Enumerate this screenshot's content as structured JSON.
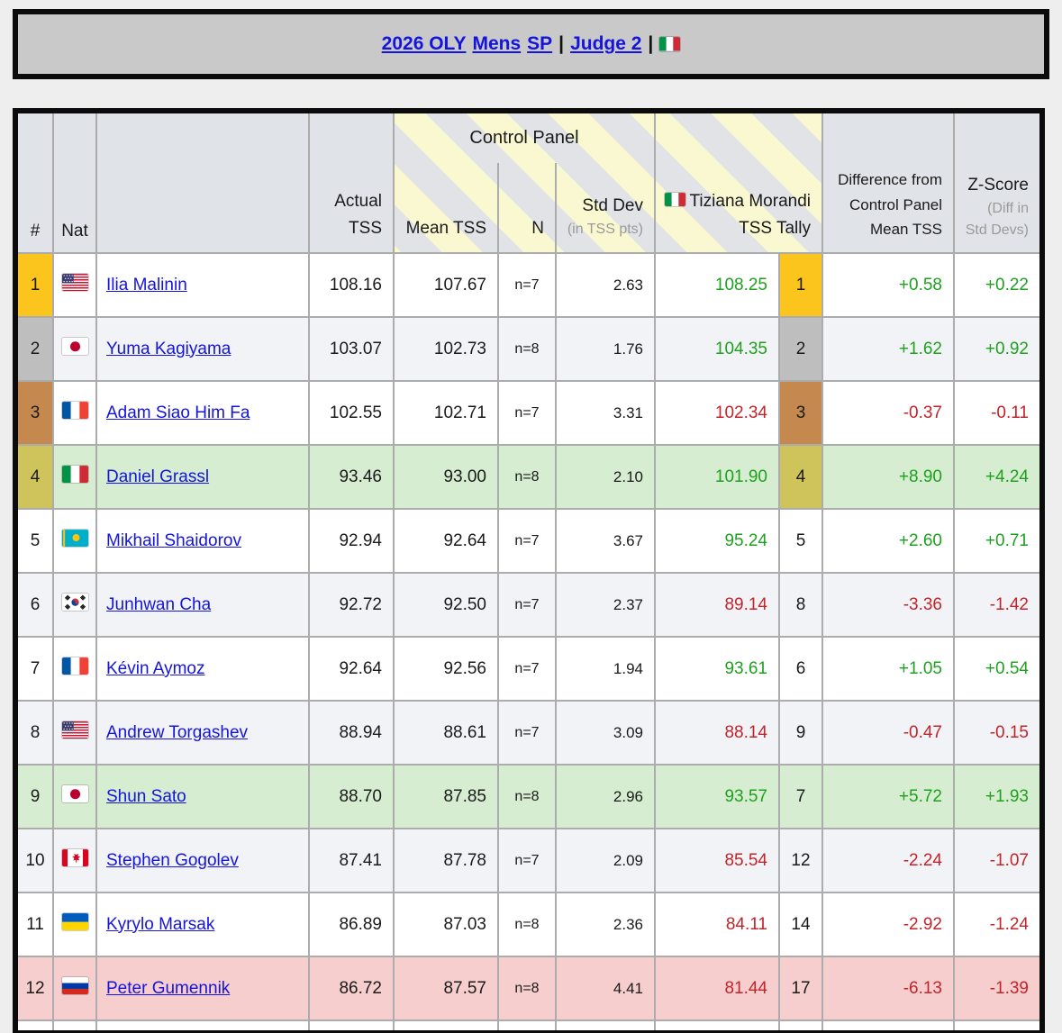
{
  "banner": {
    "links": [
      "2026 OLY",
      "Mens",
      "SP",
      "Judge 2"
    ],
    "separator": "|",
    "flag": "IT"
  },
  "table": {
    "headers": {
      "rank": "#",
      "nat": "Nat",
      "name": "",
      "actual_1": "Actual",
      "actual_2": "TSS",
      "group": "Control Panel",
      "mean": "Mean TSS",
      "n": "N",
      "std": "Std Dev",
      "std_sub": "(in TSS pts)",
      "tally_flag": "IT",
      "tally_judge": "Tiziana Morandi",
      "tally_sub": "TSS Tally",
      "diff_1": "Difference from",
      "diff_2": "Control Panel",
      "diff_3": "Mean TSS",
      "z": "Z-Score",
      "z_sub_1": "(Diff in",
      "z_sub_2": "Std Devs)"
    },
    "rows": [
      {
        "rank": "1",
        "medal": "gold",
        "nat": "US",
        "name": "Ilia Malinin",
        "actual": "108.16",
        "mean": "107.67",
        "n": "n=7",
        "std": "2.63",
        "tally": "108.25",
        "tally_rank": "1",
        "tally_medal": "gold",
        "diff": "+0.58",
        "z": "+0.22",
        "trend": "up",
        "row_bg": ""
      },
      {
        "rank": "2",
        "medal": "silver",
        "nat": "JP",
        "name": "Yuma Kagiyama",
        "actual": "103.07",
        "mean": "102.73",
        "n": "n=8",
        "std": "1.76",
        "tally": "104.35",
        "tally_rank": "2",
        "tally_medal": "silver",
        "diff": "+1.62",
        "z": "+0.92",
        "trend": "up",
        "row_bg": "alt"
      },
      {
        "rank": "3",
        "medal": "bronze",
        "nat": "FR",
        "name": "Adam Siao Him Fa",
        "actual": "102.55",
        "mean": "102.71",
        "n": "n=7",
        "std": "3.31",
        "tally": "102.34",
        "tally_rank": "3",
        "tally_medal": "bronze",
        "diff": "-0.37",
        "z": "-0.11",
        "trend": "down",
        "row_bg": ""
      },
      {
        "rank": "4",
        "medal": "fourth",
        "nat": "IT",
        "name": "Daniel Grassl",
        "actual": "93.46",
        "mean": "93.00",
        "n": "n=8",
        "std": "2.10",
        "tally": "101.90",
        "tally_rank": "4",
        "tally_medal": "fourth",
        "diff": "+8.90",
        "z": "+4.24",
        "trend": "up",
        "row_bg": "green"
      },
      {
        "rank": "5",
        "medal": "",
        "nat": "KZ",
        "name": "Mikhail Shaidorov",
        "actual": "92.94",
        "mean": "92.64",
        "n": "n=7",
        "std": "3.67",
        "tally": "95.24",
        "tally_rank": "5",
        "tally_medal": "",
        "diff": "+2.60",
        "z": "+0.71",
        "trend": "up",
        "row_bg": ""
      },
      {
        "rank": "6",
        "medal": "",
        "nat": "KR",
        "name": "Junhwan Cha",
        "actual": "92.72",
        "mean": "92.50",
        "n": "n=7",
        "std": "2.37",
        "tally": "89.14",
        "tally_rank": "8",
        "tally_medal": "",
        "diff": "-3.36",
        "z": "-1.42",
        "trend": "down",
        "row_bg": "alt"
      },
      {
        "rank": "7",
        "medal": "",
        "nat": "FR",
        "name": "Kévin Aymoz",
        "actual": "92.64",
        "mean": "92.56",
        "n": "n=7",
        "std": "1.94",
        "tally": "93.61",
        "tally_rank": "6",
        "tally_medal": "",
        "diff": "+1.05",
        "z": "+0.54",
        "trend": "up",
        "row_bg": ""
      },
      {
        "rank": "8",
        "medal": "",
        "nat": "US",
        "name": "Andrew Torgashev",
        "actual": "88.94",
        "mean": "88.61",
        "n": "n=7",
        "std": "3.09",
        "tally": "88.14",
        "tally_rank": "9",
        "tally_medal": "",
        "diff": "-0.47",
        "z": "-0.15",
        "trend": "down",
        "row_bg": "alt"
      },
      {
        "rank": "9",
        "medal": "",
        "nat": "JP",
        "name": "Shun Sato",
        "actual": "88.70",
        "mean": "87.85",
        "n": "n=8",
        "std": "2.96",
        "tally": "93.57",
        "tally_rank": "7",
        "tally_medal": "",
        "diff": "+5.72",
        "z": "+1.93",
        "trend": "up",
        "row_bg": "green"
      },
      {
        "rank": "10",
        "medal": "",
        "nat": "CA",
        "name": "Stephen Gogolev",
        "actual": "87.41",
        "mean": "87.78",
        "n": "n=7",
        "std": "2.09",
        "tally": "85.54",
        "tally_rank": "12",
        "tally_medal": "",
        "diff": "-2.24",
        "z": "-1.07",
        "trend": "down",
        "row_bg": "alt"
      },
      {
        "rank": "11",
        "medal": "",
        "nat": "UA",
        "name": "Kyrylo Marsak",
        "actual": "86.89",
        "mean": "87.03",
        "n": "n=8",
        "std": "2.36",
        "tally": "84.11",
        "tally_rank": "14",
        "tally_medal": "",
        "diff": "-2.92",
        "z": "-1.24",
        "trend": "down",
        "row_bg": ""
      },
      {
        "rank": "12",
        "medal": "",
        "nat": "RU",
        "name": "Peter Gumennik",
        "actual": "86.72",
        "mean": "87.57",
        "n": "n=8",
        "std": "4.41",
        "tally": "81.44",
        "tally_rank": "17",
        "tally_medal": "",
        "diff": "-6.13",
        "z": "-1.39",
        "trend": "down",
        "row_bg": "pink"
      }
    ]
  },
  "colors": {
    "gold": "#fbc51d",
    "silver": "#bebebe",
    "bronze": "#c5894f",
    "fourth": "#cfc35c",
    "positive": "#1fa01f",
    "negative": "#c2242b",
    "row_green": "#d6edd1",
    "row_pink": "#f6cecd",
    "stripe_yellow": "#faf8d0",
    "header_bg": "#e0e3e8"
  }
}
